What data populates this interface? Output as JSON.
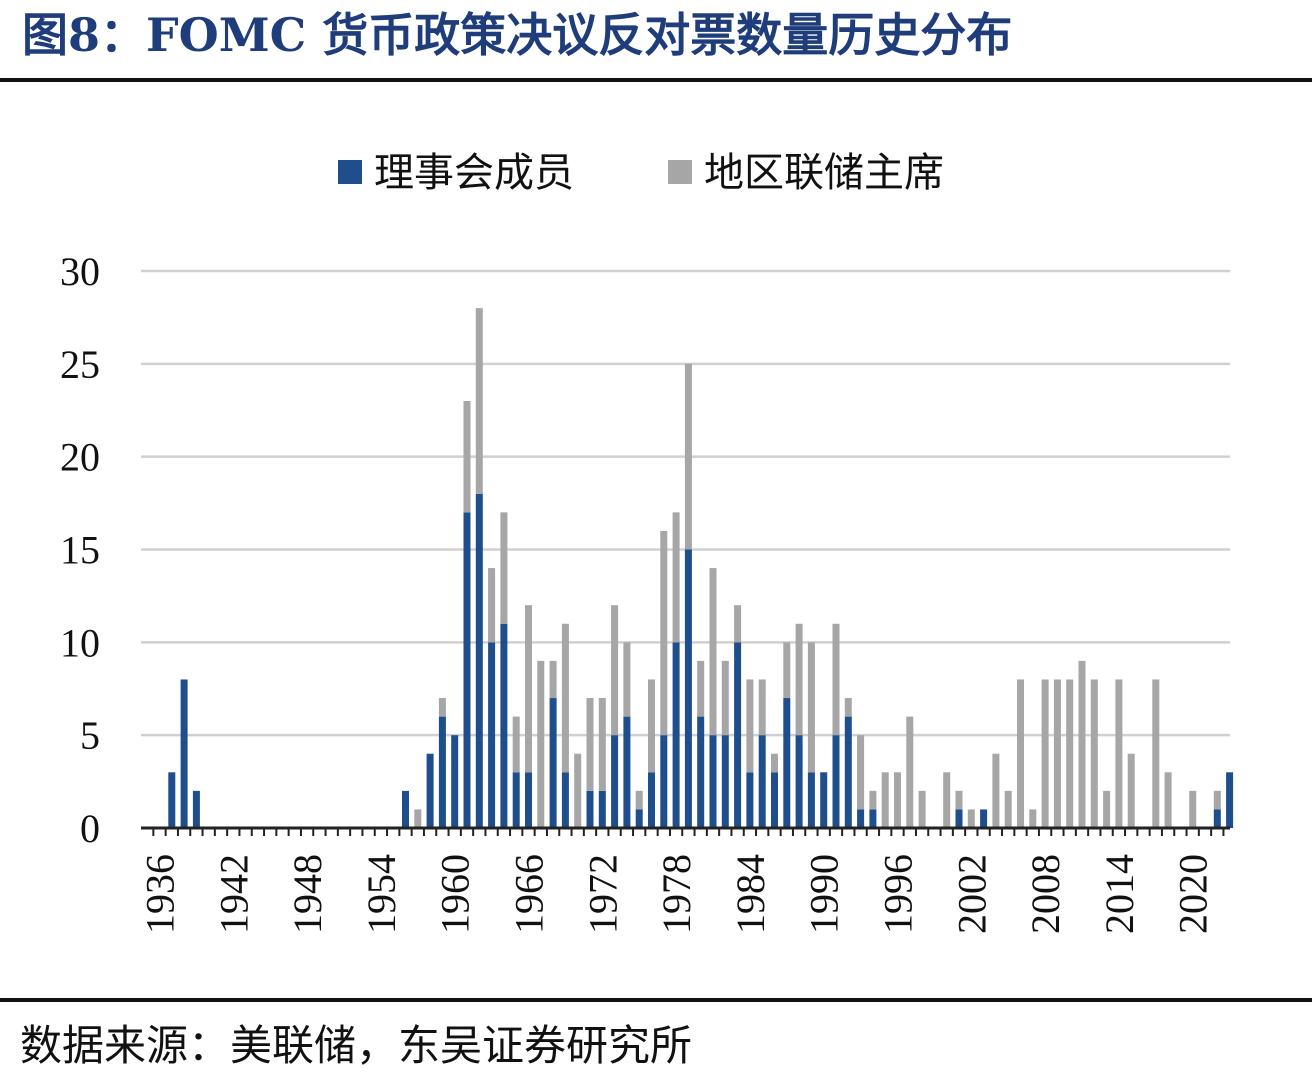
{
  "header": {
    "title": "图8：FOMC 货币政策决议反对票数量历史分布"
  },
  "footer": {
    "source": "数据来源：美联储，东吴证券研究所"
  },
  "colors": {
    "board": "#1f4e8c",
    "regional": "#a6a6a6",
    "grid": "#d0d0d0",
    "axis": "#222222"
  },
  "chart_data": {
    "type": "bar",
    "stacked": true,
    "legend_position": "top-center",
    "grid": true,
    "ylim": [
      0,
      30
    ],
    "yticks": [
      "0",
      "5",
      "10",
      "15",
      "20",
      "25",
      "30"
    ],
    "xticks": [
      "1936",
      "1942",
      "1948",
      "1954",
      "1960",
      "1966",
      "1972",
      "1978",
      "1984",
      "1990",
      "1996",
      "2002",
      "2008",
      "2014",
      "2020"
    ],
    "x": [
      1936,
      1937,
      1938,
      1939,
      1940,
      1941,
      1942,
      1943,
      1944,
      1945,
      1946,
      1947,
      1948,
      1949,
      1950,
      1951,
      1952,
      1953,
      1954,
      1955,
      1956,
      1957,
      1958,
      1959,
      1960,
      1961,
      1962,
      1963,
      1964,
      1965,
      1966,
      1967,
      1968,
      1969,
      1970,
      1971,
      1972,
      1973,
      1974,
      1975,
      1976,
      1977,
      1978,
      1979,
      1980,
      1981,
      1982,
      1983,
      1984,
      1985,
      1986,
      1987,
      1988,
      1989,
      1990,
      1991,
      1992,
      1993,
      1994,
      1995,
      1996,
      1997,
      1998,
      1999,
      2000,
      2001,
      2002,
      2003,
      2004,
      2005,
      2006,
      2007,
      2008,
      2009,
      2010,
      2011,
      2012,
      2013,
      2014,
      2015,
      2016,
      2017,
      2018,
      2019,
      2020,
      2021,
      2022,
      2023
    ],
    "series": [
      {
        "name": "理事会成员",
        "values": [
          0,
          3,
          8,
          2,
          0,
          0,
          0,
          0,
          0,
          0,
          0,
          0,
          0,
          0,
          0,
          0,
          0,
          0,
          0,
          0,
          2,
          0,
          4,
          6,
          5,
          17,
          18,
          10,
          11,
          3,
          3,
          0,
          7,
          3,
          0,
          2,
          2,
          5,
          6,
          1,
          3,
          5,
          10,
          15,
          6,
          5,
          5,
          10,
          3,
          5,
          3,
          7,
          5,
          3,
          3,
          5,
          6,
          1,
          1,
          0,
          0,
          0,
          0,
          0,
          0,
          1,
          0,
          1,
          0,
          0,
          0,
          0,
          0,
          0,
          0,
          0,
          0,
          0,
          0,
          0,
          0,
          0,
          0,
          0,
          0,
          0,
          1,
          3
        ]
      },
      {
        "name": "地区联储主席",
        "values": [
          0,
          0,
          0,
          0,
          0,
          0,
          0,
          0,
          0,
          0,
          0,
          0,
          0,
          0,
          0,
          0,
          0,
          0,
          0,
          0,
          0,
          1,
          0,
          1,
          0,
          6,
          10,
          4,
          6,
          3,
          9,
          9,
          2,
          8,
          4,
          5,
          5,
          7,
          4,
          1,
          5,
          11,
          7,
          10,
          3,
          9,
          4,
          2,
          5,
          3,
          1,
          3,
          6,
          7,
          0,
          6,
          1,
          4,
          1,
          3,
          3,
          6,
          2,
          0,
          3,
          1,
          1,
          0,
          4,
          2,
          8,
          1,
          8,
          8,
          8,
          9,
          8,
          2,
          8,
          4,
          0,
          8,
          3,
          0,
          2,
          0,
          1,
          0
        ]
      }
    ]
  }
}
